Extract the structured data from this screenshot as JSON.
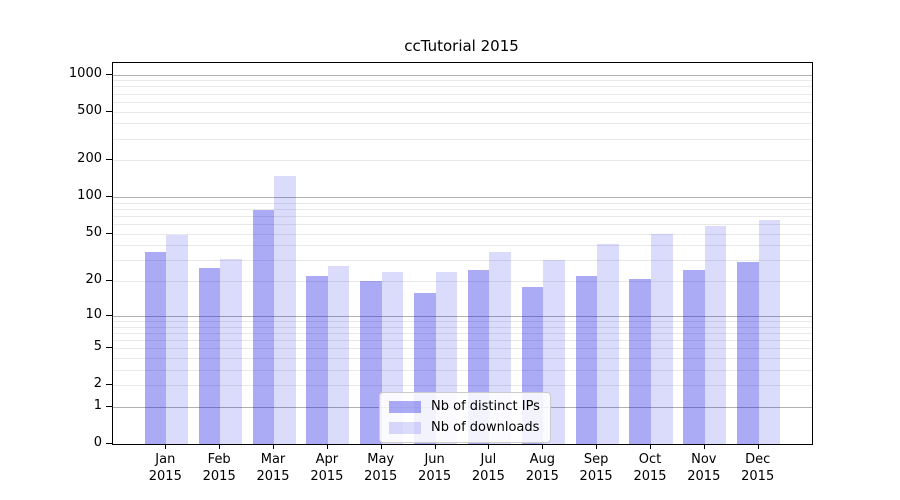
{
  "figure": {
    "background": "#ffffff"
  },
  "chart_data": {
    "type": "bar",
    "title": "ccTutorial 2015",
    "categories": [
      "Jan 2015",
      "Feb 2015",
      "Mar 2015",
      "Apr 2015",
      "May 2015",
      "Jun 2015",
      "Jul 2015",
      "Aug 2015",
      "Sep 2015",
      "Oct 2015",
      "Nov 2015",
      "Dec 2015"
    ],
    "series": [
      {
        "name": "Nb of distinct IPs",
        "values": [
          35,
          26,
          79,
          22,
          20,
          16,
          25,
          18,
          22,
          21,
          25,
          29
        ],
        "color": "rgba(15,15,225,0.35)",
        "color_on_white_hex": "#a7a7f4"
      },
      {
        "name": "Nb of downloads",
        "values": [
          49,
          31,
          148,
          27,
          24,
          24,
          35,
          30,
          41,
          50,
          58,
          65
        ],
        "color": "rgba(15,15,225,0.15)",
        "color_on_white_hex": "#dbdbf9"
      }
    ],
    "xlabel": "",
    "ylabel": "",
    "yscale": "log10(1+y) symlog-like",
    "ylim": [
      0,
      1240
    ],
    "yticks": [
      0,
      1,
      2,
      5,
      10,
      20,
      50,
      100,
      200,
      500,
      1000
    ],
    "ytick_labels": [
      "0",
      "1",
      "2",
      "5",
      "10",
      "20",
      "50",
      "100",
      "200",
      "500",
      "1000"
    ],
    "major_grid_values": [
      1,
      10,
      100,
      1000
    ],
    "grid": true,
    "legend_position": "lower center",
    "colors": {
      "major_grid": "#b0b0b0",
      "minor_grid": "#e9e9e9",
      "spine": "#000000",
      "text": "#000000"
    }
  }
}
